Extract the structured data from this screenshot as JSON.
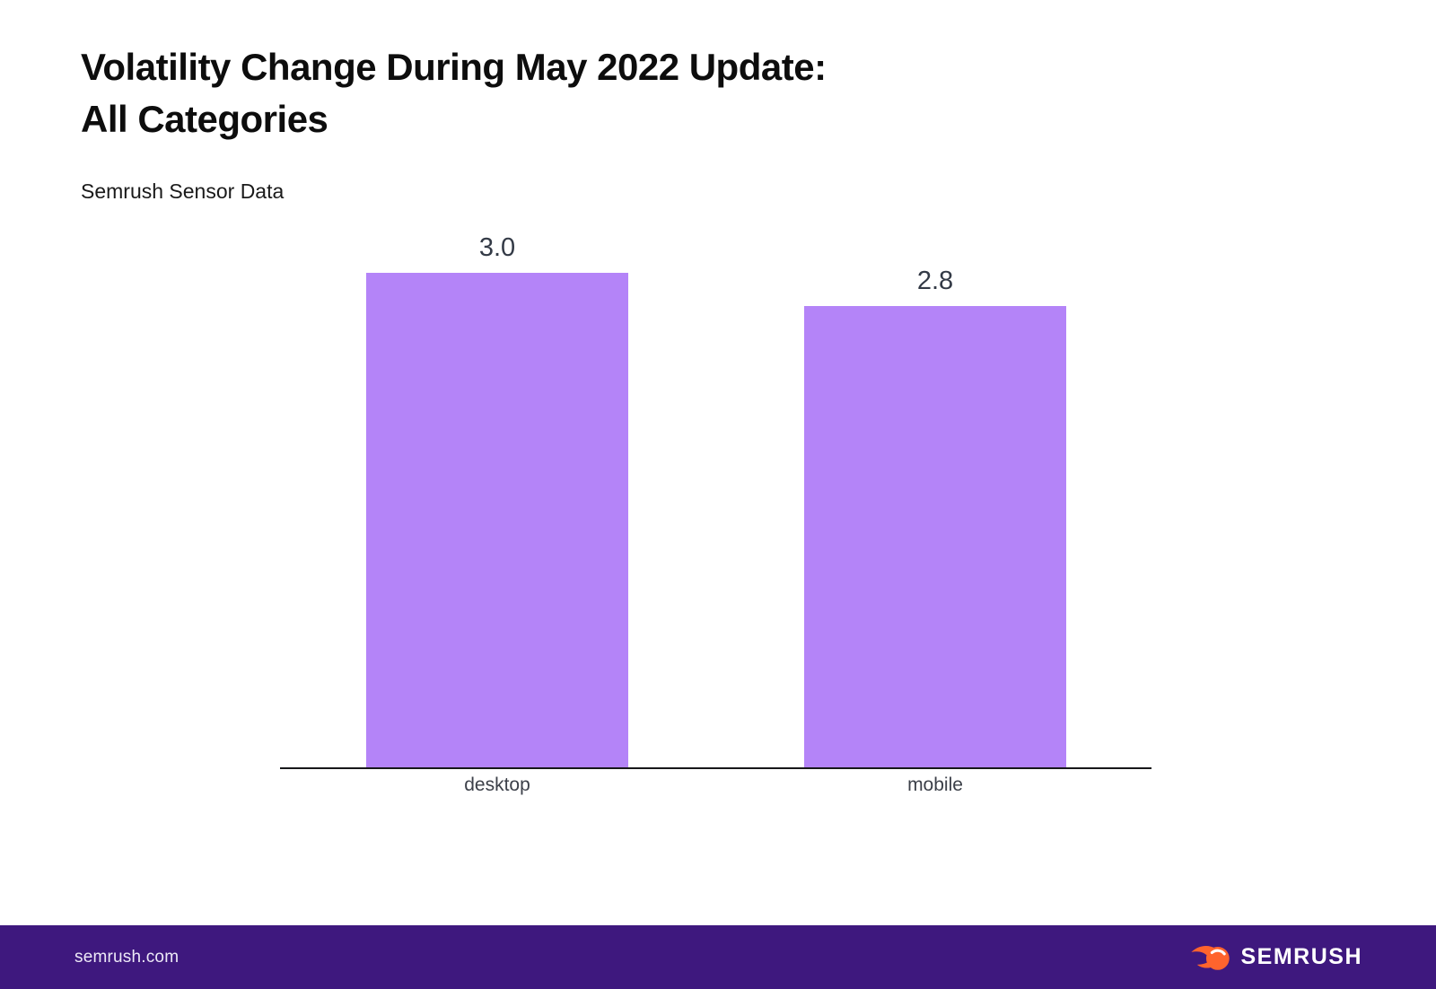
{
  "page": {
    "title_line1": "Volatility Change During May 2022 Update:",
    "title_line2": "All Categories",
    "subtitle": "Semrush Sensor Data"
  },
  "chart_data": {
    "type": "bar",
    "title": "Volatility Change During May 2022 Update: All Categories",
    "subtitle": "Semrush Sensor Data",
    "categories": [
      "desktop",
      "mobile"
    ],
    "values": [
      3.0,
      2.8
    ],
    "value_labels": [
      "3.0",
      "2.8"
    ],
    "xlabel": "",
    "ylabel": "",
    "ylim": [
      0,
      3.2
    ],
    "grid": false,
    "legend": false,
    "bar_color": "#b484f8",
    "value_label_color": "#333a46",
    "tick_label_color": "#3c4049",
    "axis_color": "#17181a"
  },
  "footer": {
    "site_label": "semrush.com",
    "brand_name": "SEMRUSH",
    "logo_icon": "semrush-comet-icon",
    "background_color": "#3e187e",
    "brand_orange": "#ff642d",
    "text_color": "#ede9f7"
  }
}
